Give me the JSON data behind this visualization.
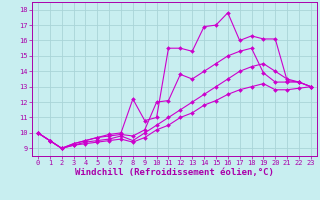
{
  "title": "",
  "xlabel": "Windchill (Refroidissement éolien,°C)",
  "ylabel": "",
  "background_color": "#c8eef0",
  "grid_color": "#aad4d8",
  "line_color": "#cc00cc",
  "xlim": [
    -0.5,
    23.5
  ],
  "ylim": [
    8.5,
    18.5
  ],
  "xticks": [
    0,
    1,
    2,
    3,
    4,
    5,
    6,
    7,
    8,
    9,
    10,
    11,
    12,
    13,
    14,
    15,
    16,
    17,
    18,
    19,
    20,
    21,
    22,
    23
  ],
  "yticks": [
    9,
    10,
    11,
    12,
    13,
    14,
    15,
    16,
    17,
    18
  ],
  "lines": [
    {
      "x": [
        0,
        1,
        2,
        3,
        4,
        5,
        6,
        7,
        8,
        9,
        10,
        11,
        12,
        13,
        14,
        15,
        16,
        17,
        18,
        19,
        20,
        21,
        22,
        23
      ],
      "y": [
        10.0,
        9.5,
        9.0,
        9.3,
        9.5,
        9.7,
        9.9,
        10.0,
        12.2,
        10.8,
        11.0,
        15.5,
        15.5,
        15.3,
        16.9,
        17.0,
        17.8,
        16.0,
        16.3,
        16.1,
        16.1,
        13.4,
        13.3,
        13.0
      ]
    },
    {
      "x": [
        0,
        1,
        2,
        3,
        4,
        5,
        6,
        7,
        8,
        9,
        10,
        11,
        12,
        13,
        14,
        15,
        16,
        17,
        18,
        19,
        20,
        21,
        22,
        23
      ],
      "y": [
        10.0,
        9.5,
        9.0,
        9.3,
        9.5,
        9.7,
        9.8,
        9.9,
        9.8,
        10.2,
        12.0,
        12.1,
        13.8,
        13.5,
        14.0,
        14.5,
        15.0,
        15.3,
        15.5,
        13.9,
        13.3,
        13.3,
        13.3,
        13.0
      ]
    },
    {
      "x": [
        0,
        1,
        2,
        3,
        4,
        5,
        6,
        7,
        8,
        9,
        10,
        11,
        12,
        13,
        14,
        15,
        16,
        17,
        18,
        19,
        20,
        21,
        22,
        23
      ],
      "y": [
        10.0,
        9.5,
        9.0,
        9.2,
        9.4,
        9.5,
        9.6,
        9.8,
        9.5,
        10.0,
        10.5,
        11.0,
        11.5,
        12.0,
        12.5,
        13.0,
        13.5,
        14.0,
        14.3,
        14.5,
        14.0,
        13.5,
        13.3,
        13.0
      ]
    },
    {
      "x": [
        0,
        1,
        2,
        3,
        4,
        5,
        6,
        7,
        8,
        9,
        10,
        11,
        12,
        13,
        14,
        15,
        16,
        17,
        18,
        19,
        20,
        21,
        22,
        23
      ],
      "y": [
        10.0,
        9.5,
        9.0,
        9.2,
        9.3,
        9.4,
        9.5,
        9.6,
        9.4,
        9.7,
        10.2,
        10.5,
        11.0,
        11.3,
        11.8,
        12.1,
        12.5,
        12.8,
        13.0,
        13.2,
        12.8,
        12.8,
        12.9,
        13.0
      ]
    }
  ],
  "marker": "D",
  "marker_size": 2.0,
  "line_width": 0.8,
  "font_color": "#aa00aa",
  "tick_fontsize": 5.0,
  "xlabel_fontsize": 6.5
}
